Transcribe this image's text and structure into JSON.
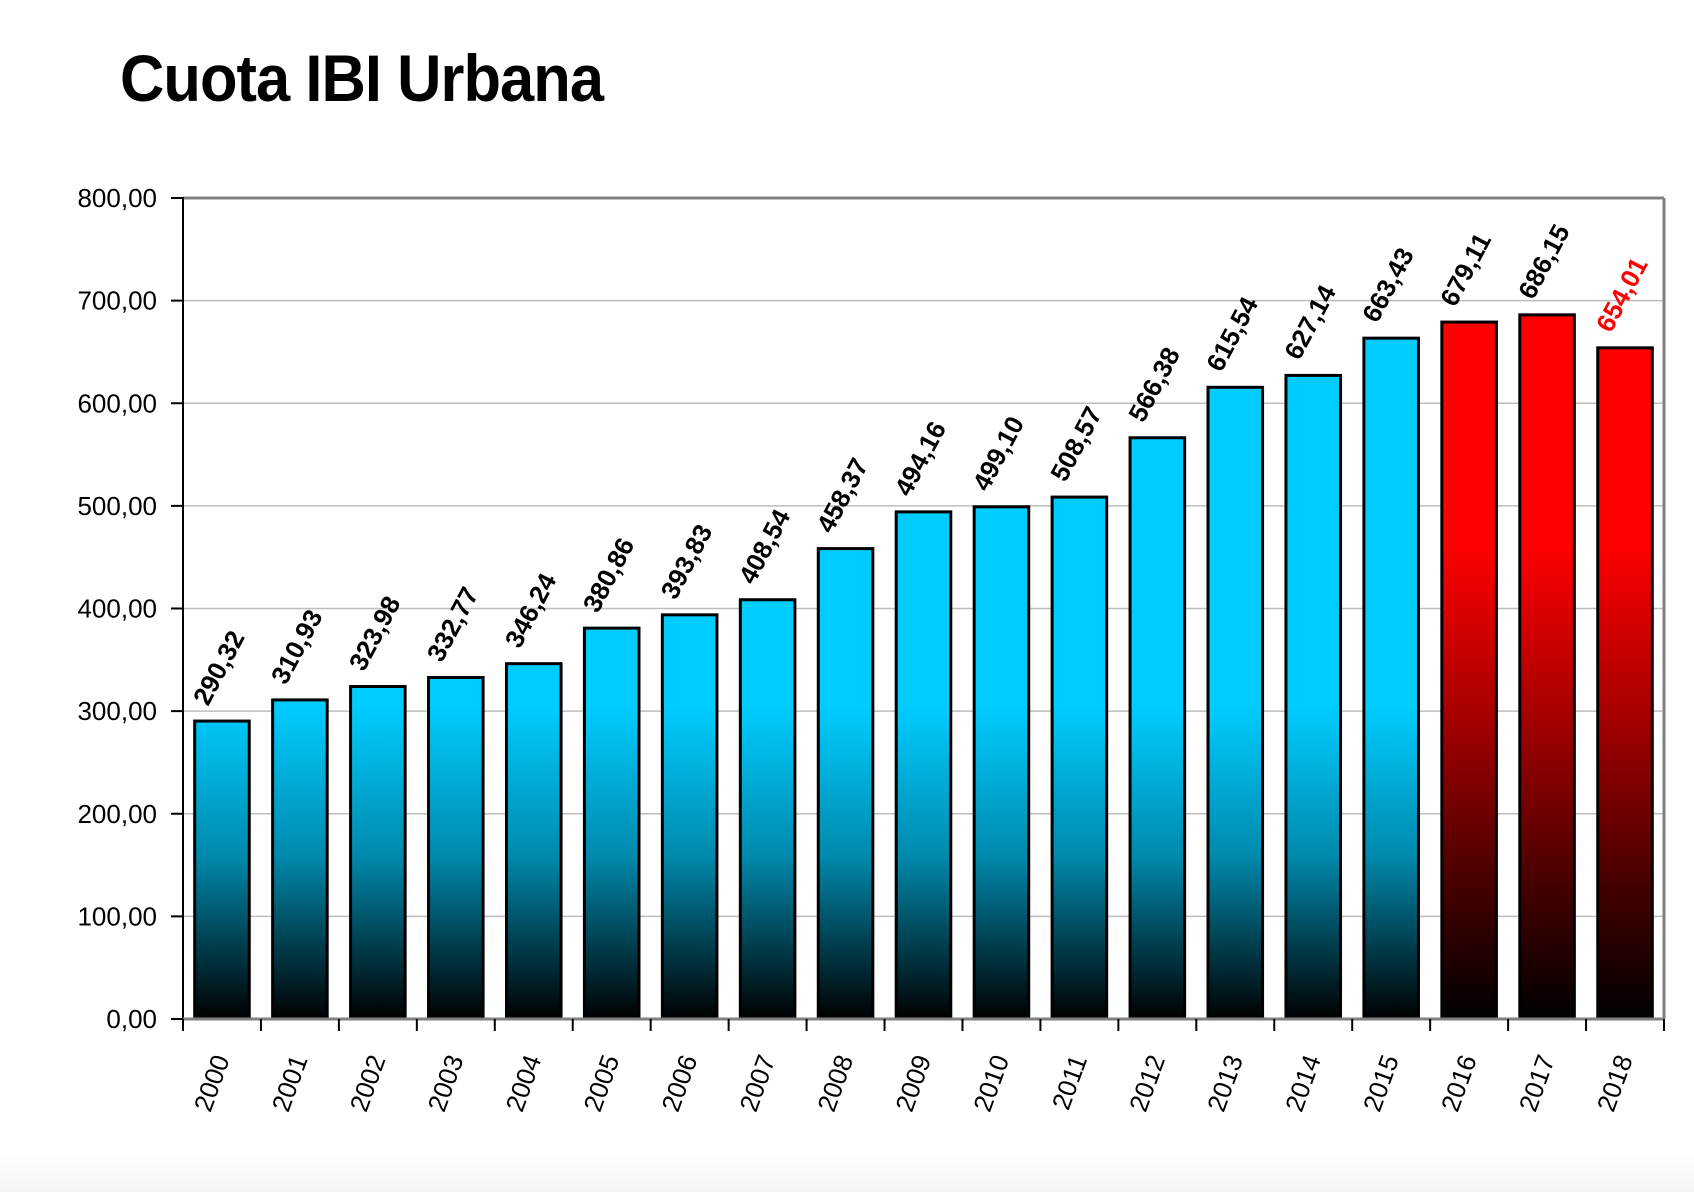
{
  "chart_data": {
    "type": "bar",
    "title": "Cuota IBI Urbana",
    "xlabel": "",
    "ylabel": "",
    "ylim": [
      0,
      800
    ],
    "yticks": [
      0,
      100,
      200,
      300,
      400,
      500,
      600,
      700,
      800
    ],
    "ytick_labels": [
      "0,00",
      "100,00",
      "200,00",
      "300,00",
      "400,00",
      "500,00",
      "600,00",
      "700,00",
      "800,00"
    ],
    "grid": true,
    "legend": "none",
    "categories": [
      "2000",
      "2001",
      "2002",
      "2003",
      "2004",
      "2005",
      "2006",
      "2007",
      "2008",
      "2009",
      "2010",
      "2011",
      "2012",
      "2013",
      "2014",
      "2015",
      "2016",
      "2017",
      "2018"
    ],
    "values": [
      290.32,
      310.93,
      323.98,
      332.77,
      346.24,
      380.86,
      393.83,
      408.54,
      458.37,
      494.16,
      499.1,
      508.57,
      566.38,
      615.54,
      627.14,
      663.43,
      679.11,
      686.15,
      654.01
    ],
    "data_labels": [
      "290,32",
      "310,93",
      "323,98",
      "332,77",
      "346,24",
      "380,86",
      "393,83",
      "408,54",
      "458,37",
      "494,16",
      "499,10",
      "508,57",
      "566,38",
      "615,54",
      "627,14",
      "663,43",
      "679,11",
      "686,15",
      "654,01"
    ],
    "bar_colors": [
      "blue",
      "blue",
      "blue",
      "blue",
      "blue",
      "blue",
      "blue",
      "blue",
      "blue",
      "blue",
      "blue",
      "blue",
      "blue",
      "blue",
      "blue",
      "blue",
      "red",
      "red",
      "red"
    ],
    "label_colors": [
      "black",
      "black",
      "black",
      "black",
      "black",
      "black",
      "black",
      "black",
      "black",
      "black",
      "black",
      "black",
      "black",
      "black",
      "black",
      "black",
      "black",
      "black",
      "red"
    ]
  },
  "colors": {
    "blue": "#00CCFF",
    "red": "#FF0000",
    "black": "#000000",
    "grid": "#BDBDBD",
    "frame": "#808080"
  }
}
